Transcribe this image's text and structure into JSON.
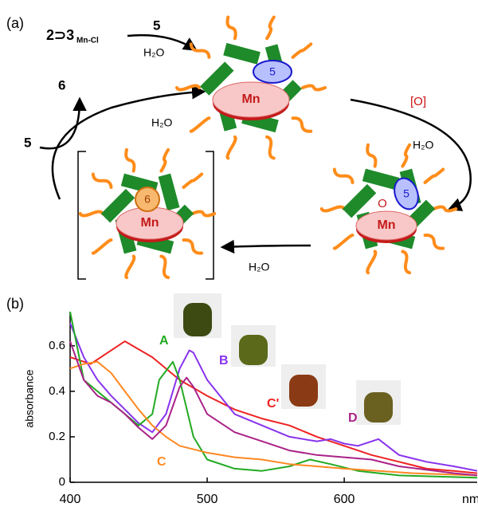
{
  "scheme": {
    "panel_label": "(a)",
    "start_complex": "2⊃3",
    "start_subscript": "Mn-Cl",
    "step1_reagent": "5",
    "step1_solvent": "H₂O",
    "released_product": "6",
    "reentering_substrate": "5",
    "step4_solvent": "H₂O",
    "oxidant": "[O]",
    "step2_solvent": "H₂O",
    "step3_solvent": "H₂O",
    "complex_top": {
      "metal": "Mn",
      "guest": "5"
    },
    "complex_right": {
      "metal": "Mn",
      "guest": "5",
      "oxo": "O"
    },
    "complex_left": {
      "metal": "Mn",
      "guest": "6"
    }
  },
  "chart_data": {
    "type": "line",
    "panel_label": "(b)",
    "ylabel": "absorbance",
    "xlabel": "nm",
    "xlim": [
      400,
      697
    ],
    "ylim": [
      0,
      0.75
    ],
    "xticks": [
      400,
      500,
      600
    ],
    "yticks": [
      0,
      0.2,
      0.4,
      0.6
    ],
    "series": [
      {
        "name": "C'",
        "color": "#ee2222",
        "x": [
          400,
          415,
          440,
          460,
          480,
          500,
          520,
          540,
          560,
          580,
          600,
          620,
          640,
          660,
          680,
          697
        ],
        "values": [
          0.55,
          0.52,
          0.62,
          0.55,
          0.45,
          0.38,
          0.32,
          0.28,
          0.25,
          0.2,
          0.16,
          0.12,
          0.09,
          0.06,
          0.05,
          0.04
        ]
      },
      {
        "name": "B",
        "color": "#8833ee",
        "x": [
          400,
          410,
          420,
          430,
          440,
          450,
          460,
          470,
          480,
          487,
          490,
          500,
          520,
          540,
          560,
          580,
          590,
          600,
          610,
          625,
          640,
          660,
          680,
          697
        ],
        "values": [
          0.7,
          0.55,
          0.45,
          0.38,
          0.32,
          0.26,
          0.22,
          0.3,
          0.5,
          0.58,
          0.57,
          0.45,
          0.3,
          0.25,
          0.2,
          0.18,
          0.19,
          0.17,
          0.16,
          0.19,
          0.12,
          0.09,
          0.07,
          0.05
        ]
      },
      {
        "name": "A",
        "color": "#22aa22",
        "x": [
          400,
          410,
          420,
          430,
          440,
          450,
          460,
          465,
          475,
          480,
          490,
          500,
          520,
          540,
          560,
          575,
          590,
          610,
          640,
          697
        ],
        "values": [
          0.75,
          0.45,
          0.4,
          0.35,
          0.3,
          0.25,
          0.3,
          0.45,
          0.53,
          0.45,
          0.2,
          0.1,
          0.06,
          0.05,
          0.07,
          0.1,
          0.08,
          0.05,
          0.03,
          0.02
        ]
      },
      {
        "name": "C",
        "color": "#ff8822",
        "x": [
          400,
          410,
          420,
          430,
          440,
          450,
          460,
          470,
          480,
          500,
          520,
          540,
          560,
          600,
          650,
          697
        ],
        "values": [
          0.5,
          0.52,
          0.53,
          0.48,
          0.4,
          0.32,
          0.25,
          0.2,
          0.16,
          0.13,
          0.11,
          0.1,
          0.08,
          0.06,
          0.04,
          0.03
        ]
      },
      {
        "name": "D",
        "color": "#aa2288",
        "x": [
          400,
          410,
          420,
          430,
          440,
          450,
          460,
          470,
          480,
          485,
          490,
          500,
          520,
          540,
          560,
          580,
          600,
          620,
          640,
          680,
          697
        ],
        "values": [
          0.62,
          0.45,
          0.38,
          0.35,
          0.3,
          0.24,
          0.19,
          0.25,
          0.42,
          0.46,
          0.42,
          0.3,
          0.22,
          0.18,
          0.14,
          0.12,
          0.11,
          0.1,
          0.07,
          0.04,
          0.03
        ]
      }
    ]
  }
}
